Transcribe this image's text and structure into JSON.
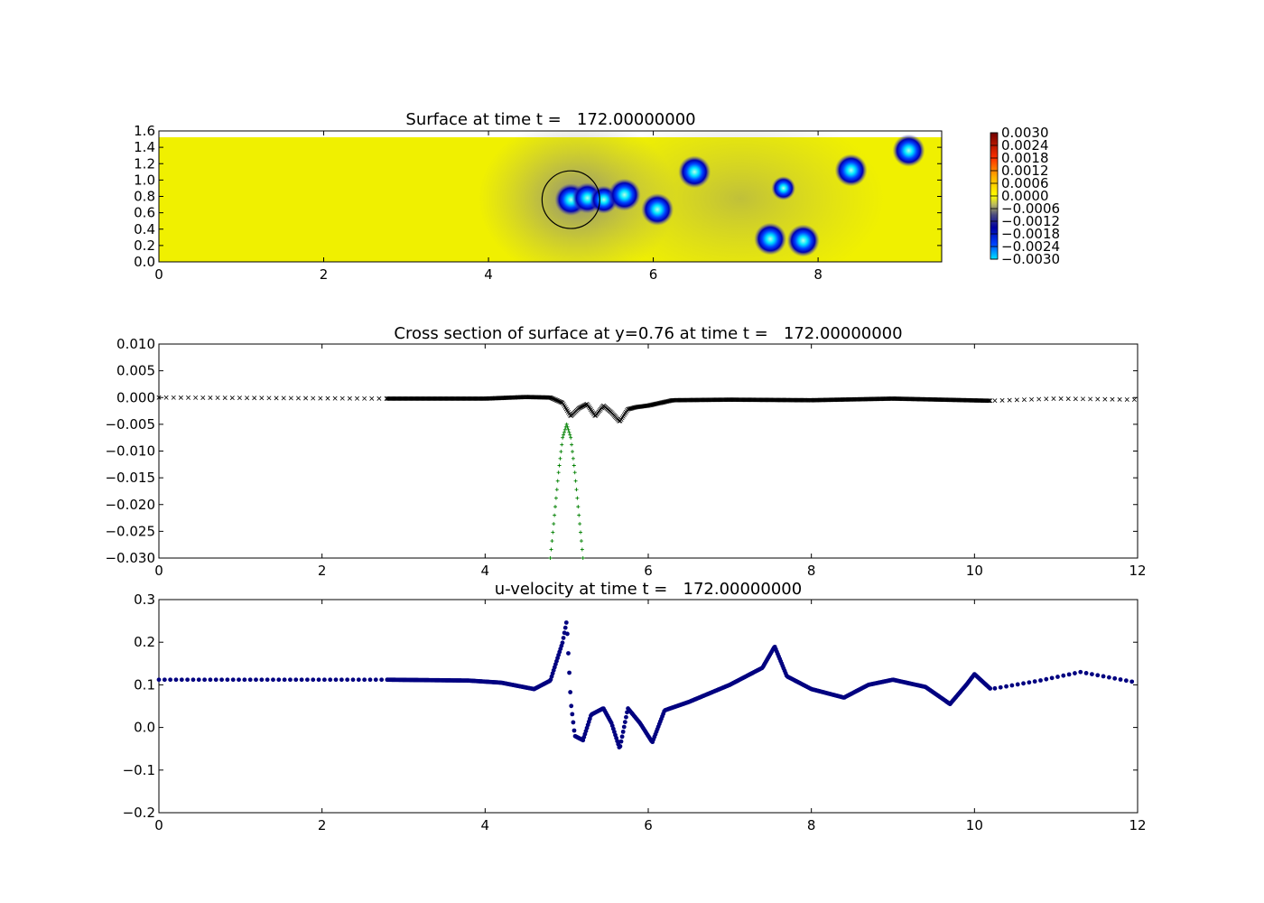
{
  "chart_data": [
    {
      "type": "heatmap",
      "title": "Surface at time t =   172.00000000",
      "xlim": [
        0,
        9.5
      ],
      "ylim": [
        0,
        1.6
      ],
      "xticks": [
        "0",
        "2",
        "4",
        "6",
        "8"
      ],
      "yticks": [
        "0.0",
        "0.2",
        "0.4",
        "0.6",
        "0.8",
        "1.0",
        "1.2",
        "1.4",
        "1.6"
      ],
      "colorbar": {
        "ticks": [
          "0.0030",
          "0.0024",
          "0.0018",
          "0.0012",
          "0.0006",
          "0.0000",
          "−0.0006",
          "−0.0012",
          "−0.0018",
          "−0.0024",
          "−0.0030"
        ],
        "range": [
          -0.003,
          0.003
        ]
      },
      "circle": {
        "x": 5.0,
        "y": 0.76,
        "r": 0.35
      },
      "features": [
        {
          "x": 5.0,
          "y": 0.76,
          "value": -0.003
        },
        {
          "x": 5.2,
          "y": 0.78,
          "value": -0.0028
        },
        {
          "x": 5.4,
          "y": 0.76,
          "value": -0.0025
        },
        {
          "x": 5.65,
          "y": 0.82,
          "value": -0.003
        },
        {
          "x": 6.05,
          "y": 0.64,
          "value": -0.003
        },
        {
          "x": 6.5,
          "y": 1.1,
          "value": -0.003
        },
        {
          "x": 7.58,
          "y": 0.9,
          "value": -0.002
        },
        {
          "x": 7.42,
          "y": 0.28,
          "value": -0.003
        },
        {
          "x": 7.82,
          "y": 0.26,
          "value": -0.003
        },
        {
          "x": 8.4,
          "y": 1.12,
          "value": -0.003
        },
        {
          "x": 9.1,
          "y": 1.36,
          "value": -0.003
        }
      ]
    },
    {
      "type": "scatter",
      "title": "Cross section of surface at y=0.76 at time t =   172.00000000",
      "xlim": [
        0,
        12
      ],
      "ylim": [
        -0.03,
        0.01
      ],
      "xticks": [
        "0",
        "2",
        "4",
        "6",
        "8",
        "10",
        "12"
      ],
      "yticks": [
        "0.010",
        "0.005",
        "0.000",
        "−0.005",
        "−0.010",
        "−0.015",
        "−0.020",
        "−0.025",
        "−0.030"
      ],
      "series": [
        {
          "marker": "x",
          "color": "#000000",
          "x": [
            0.0,
            2.8,
            3.5,
            4.0,
            4.5,
            4.8,
            4.95,
            5.05,
            5.15,
            5.25,
            5.35,
            5.45,
            5.55,
            5.65,
            5.75,
            5.85,
            6.0,
            6.3,
            7.0,
            8.0,
            9.0,
            10.2,
            11.0,
            12.0
          ],
          "y": [
            0.0,
            -0.0002,
            -0.0002,
            -0.0002,
            0.0001,
            0.0,
            -0.001,
            -0.0035,
            -0.002,
            -0.0012,
            -0.0035,
            -0.0015,
            -0.0028,
            -0.0045,
            -0.0022,
            -0.0018,
            -0.0015,
            -0.0005,
            -0.0004,
            -0.0005,
            -0.0002,
            -0.0006,
            -0.0002,
            -0.0004
          ]
        },
        {
          "marker": "+",
          "color": "#008000",
          "x": [
            4.8,
            4.85,
            4.9,
            4.95,
            5.0,
            5.05,
            5.1,
            5.15,
            5.2
          ],
          "y": [
            -0.03,
            -0.022,
            -0.014,
            -0.0075,
            -0.005,
            -0.0075,
            -0.014,
            -0.022,
            -0.03
          ]
        }
      ]
    },
    {
      "type": "scatter",
      "title": "u-velocity at time t =   172.00000000",
      "xlim": [
        0,
        12
      ],
      "ylim": [
        -0.2,
        0.3
      ],
      "xticks": [
        "0",
        "2",
        "4",
        "6",
        "8",
        "10",
        "12"
      ],
      "yticks": [
        "0.3",
        "0.2",
        "0.1",
        "0.0",
        "−0.1",
        "−0.2"
      ],
      "series": [
        {
          "marker": "o",
          "color": "#000080",
          "x": [
            0.0,
            2.8,
            3.8,
            4.2,
            4.6,
            4.8,
            4.95,
            5.0,
            5.05,
            5.1,
            5.2,
            5.3,
            5.45,
            5.55,
            5.65,
            5.75,
            5.9,
            6.05,
            6.2,
            6.5,
            7.0,
            7.4,
            7.55,
            7.7,
            8.0,
            8.4,
            8.7,
            9.0,
            9.4,
            9.7,
            9.9,
            10.0,
            10.2,
            10.8,
            11.3,
            12.0
          ],
          "y": [
            0.112,
            0.112,
            0.11,
            0.105,
            0.09,
            0.11,
            0.2,
            0.25,
            0.06,
            -0.02,
            -0.03,
            0.03,
            0.045,
            0.01,
            -0.05,
            0.045,
            0.01,
            -0.035,
            0.04,
            0.06,
            0.1,
            0.14,
            0.19,
            0.12,
            0.09,
            0.07,
            0.1,
            0.112,
            0.095,
            0.055,
            0.1,
            0.125,
            0.09,
            0.11,
            0.13,
            0.105
          ]
        }
      ]
    }
  ]
}
